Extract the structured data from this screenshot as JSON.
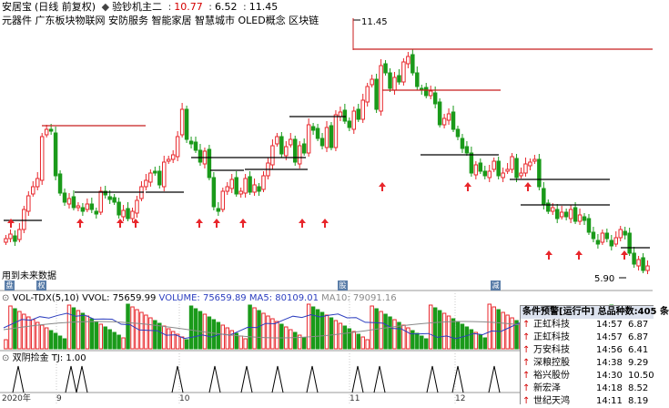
{
  "header": {
    "stock_name": "安居宝",
    "period": "(日线 前复权)",
    "indicator_name": "验钞机主二",
    "value1": "10.77",
    "value2": "6.52",
    "value3": "11.45"
  },
  "concepts": "元器件  广东板块物联网 安防服务 智能家居 智慧城市 OLED概念 区块链",
  "annotations": {
    "high": "11.45",
    "low": "5.90",
    "future_data": "用到未来数据"
  },
  "volume_header": {
    "name": "VOL-TDX(5,10)",
    "vvol": "VVOL: 75659.99",
    "volume": "VOLUME: 75659.89",
    "ma5": "MA5: 80109.01",
    "ma10": "MA10: 79091.16"
  },
  "indicator_header": {
    "name": "双阴捡金",
    "tj": "TJ: 1.00"
  },
  "x_labels": [
    "2020年",
    "9",
    "10",
    "11",
    "12"
  ],
  "event_markers": [
    "盘",
    "权",
    "股",
    "减"
  ],
  "alert_panel": {
    "title": "条件预警[运行中] 总品种数:405 条",
    "rows": [
      {
        "arrow": "↑",
        "name": "正虹科技",
        "time": "14:57",
        "price": "6.87"
      },
      {
        "arrow": "↑",
        "name": "正虹科技",
        "time": "14:57",
        "price": "6.87"
      },
      {
        "arrow": "↑",
        "name": "万安科技",
        "time": "14:56",
        "price": "6.41"
      },
      {
        "arrow": "↑",
        "name": "深粮控股",
        "time": "14:38",
        "price": "9.29"
      },
      {
        "arrow": "↑",
        "name": "裕兴股份",
        "time": "14:30",
        "price": "10.50"
      },
      {
        "arrow": "↑",
        "name": "新宏泽",
        "time": "14:18",
        "price": "8.52"
      },
      {
        "arrow": "↑",
        "name": "世纪天鸿",
        "time": "14:11",
        "price": "8.19"
      }
    ]
  },
  "colors": {
    "up": "#e8262b",
    "down": "#1a9a1a",
    "ma5": "#2c3ebf",
    "ma10": "#8a8a8a",
    "line_red": "#c81e1e",
    "line_black": "#000000"
  }
}
